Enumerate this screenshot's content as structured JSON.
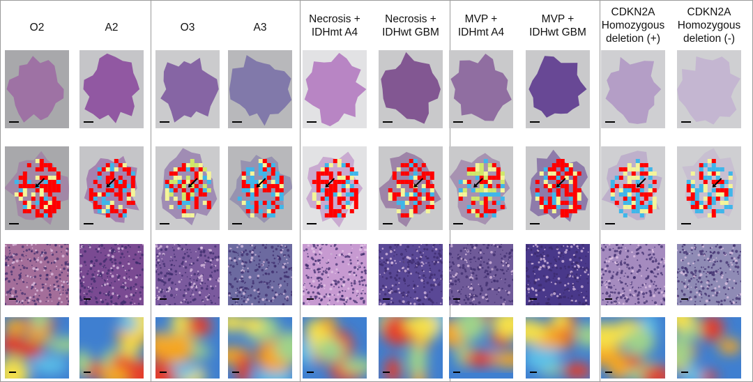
{
  "columns": [
    {
      "label": "O2",
      "bg": "#a8a8ab",
      "tissue": "#9c6ba3",
      "heatmap": "dense-red",
      "hist": "#a46e9a",
      "smooth": "blue-red-center"
    },
    {
      "label": "A2",
      "bg": "#c5c5c8",
      "tissue": "#8b4b9d",
      "heatmap": "dense-red",
      "hist": "#7a4a92",
      "smooth": "blue-red-mix"
    },
    {
      "label": "O3",
      "bg": "#cbcbcd",
      "tissue": "#7e5aa0",
      "heatmap": "sparse-mix",
      "hist": "#7b5a9e",
      "smooth": "red-yellow"
    },
    {
      "label": "A3",
      "bg": "#b8b8bb",
      "tissue": "#7b72a8",
      "heatmap": "mixed",
      "hist": "#6c6aa0",
      "smooth": "red-blue"
    },
    {
      "label": "Necrosis +\nIDHmt A4",
      "bg": "#e2e2e4",
      "tissue": "#b47bc0",
      "heatmap": "dense-red",
      "hist": "#c79ad1",
      "smooth": "blue-orange"
    },
    {
      "label": "Necrosis +\nIDHwt GBM",
      "bg": "#c9c9cb",
      "tissue": "#7a4a8c",
      "heatmap": "dense-red",
      "hist": "#5a4896",
      "smooth": "red-yellow"
    },
    {
      "label": "MVP +\nIDHmt A4",
      "bg": "#c9c9cb",
      "tissue": "#8a649c",
      "heatmap": "sparse-mix",
      "hist": "#6f5a99",
      "smooth": "orange-blue"
    },
    {
      "label": "MVP +\nIDHwt GBM",
      "bg": "#c9c9cb",
      "tissue": "#5d3a8f",
      "heatmap": "dense-red",
      "hist": "#49388a",
      "smooth": "yellow-red"
    },
    {
      "label": "CDKN2A\nHomozygous\ndeletion (+)",
      "bg": "#cfcfd2",
      "tissue": "#b098c4",
      "heatmap": "mixed",
      "hist": "#a58bbf",
      "smooth": "red-blue-yellow"
    },
    {
      "label": "CDKN2A\nHomozygous\ndeletion (-)",
      "bg": "#cfcfd2",
      "tissue": "#c2b2d0",
      "heatmap": "mixed",
      "hist": "#8f8bb5",
      "smooth": "orange-red"
    }
  ]
}
